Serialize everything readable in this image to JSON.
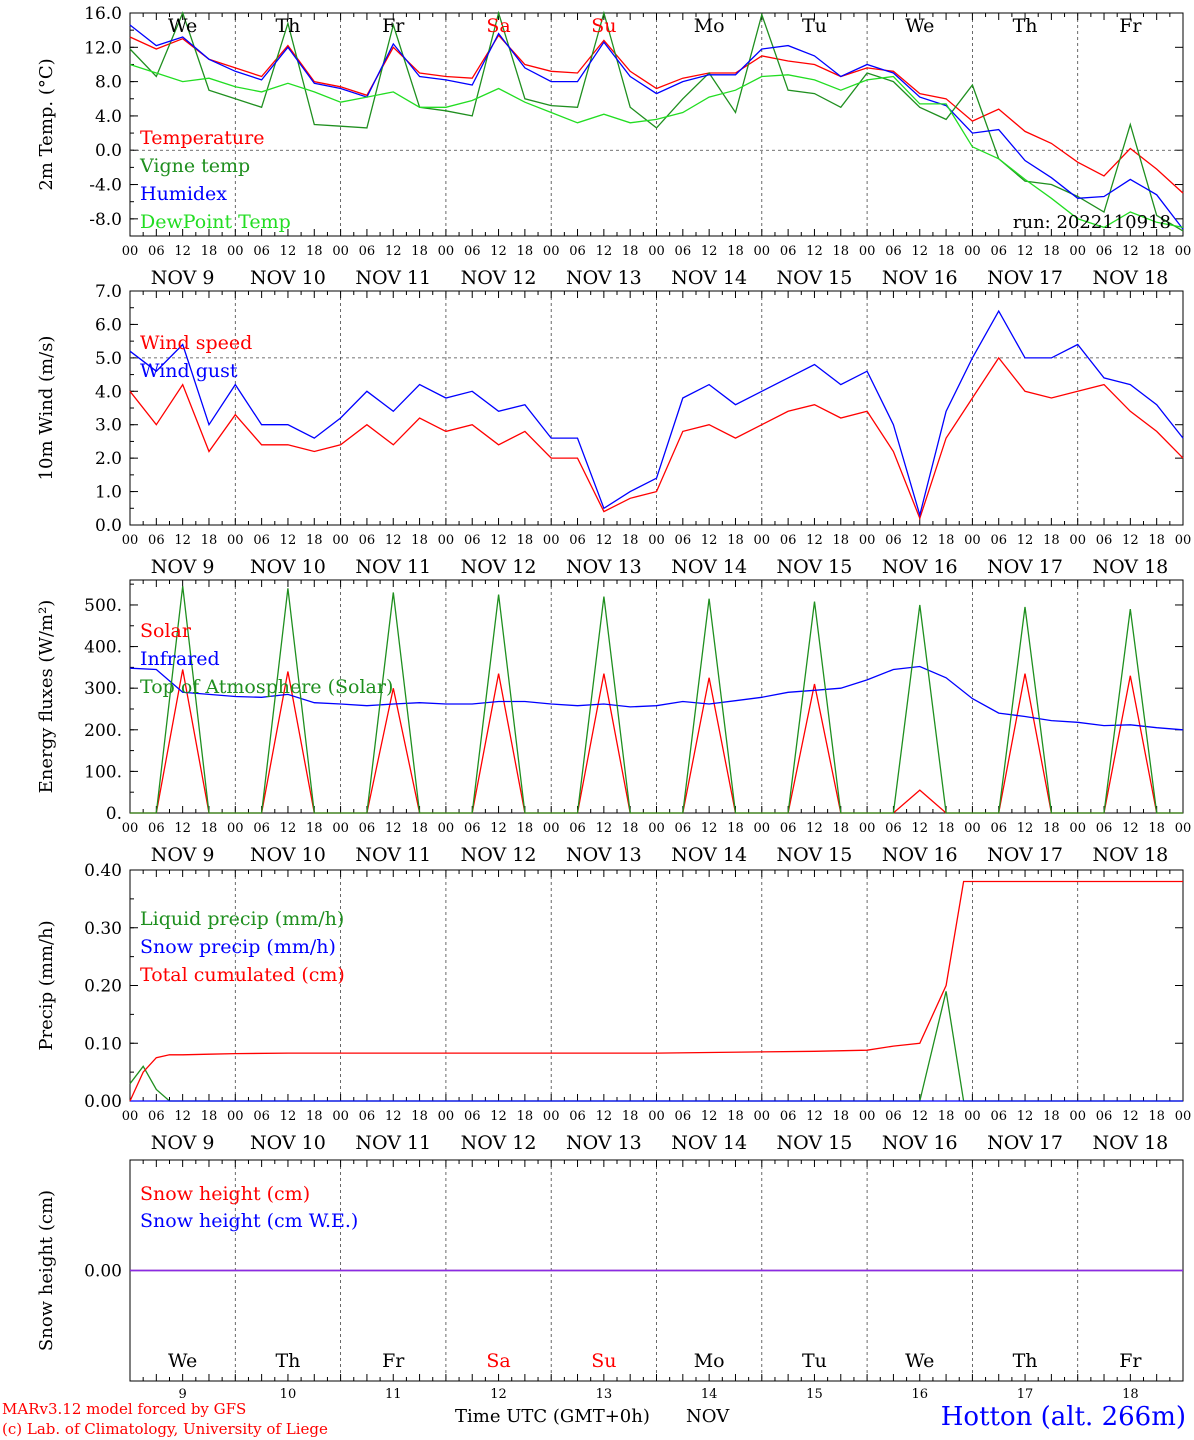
{
  "colors": {
    "red": "#ff0000",
    "green": "#1f8f1f",
    "blue": "#0000ff",
    "lime": "#22dd22",
    "purple": "#8a2be2"
  },
  "x_axis": {
    "hour_labels": [
      "00",
      "06",
      "12",
      "18"
    ],
    "date_labels": [
      "NOV  9",
      "NOV 10",
      "NOV 11",
      "NOV 12",
      "NOV 13",
      "NOV 14",
      "NOV 15",
      "NOV 16",
      "NOV 17",
      "NOV 18"
    ],
    "weekday_labels": [
      "We",
      "Th",
      "Fr",
      "Sa",
      "Su",
      "Mo",
      "Tu",
      "We",
      "Th",
      "Fr"
    ],
    "weekday_red": [
      false,
      false,
      false,
      true,
      true,
      false,
      false,
      false,
      false,
      false
    ],
    "day_numbers": [
      "9",
      "10",
      "11",
      "12",
      "13",
      "14",
      "15",
      "16",
      "17",
      "18"
    ]
  },
  "chart_data": [
    {
      "type": "line",
      "ylabel": "2m Temp. (°C)",
      "ylim": [
        -10,
        16
      ],
      "yticks": [
        "16.0",
        "12.0",
        "8.0",
        "4.0",
        "0.0",
        "-4.0",
        "-8.0"
      ],
      "ytick_values": [
        16,
        12,
        8,
        4,
        0,
        -4,
        -8
      ],
      "annotation": "run: 2022110918",
      "x_hours": [
        0,
        6,
        12,
        18,
        24,
        30,
        36,
        42,
        48,
        54,
        60,
        66,
        72,
        78,
        84,
        90,
        96,
        102,
        108,
        114,
        120,
        126,
        132,
        138,
        144,
        150,
        156,
        162,
        168,
        174,
        180,
        186,
        192,
        198,
        204,
        210,
        216,
        222,
        228,
        234,
        240
      ],
      "series": [
        {
          "name": "Temperature",
          "color": "red",
          "values": [
            13.2,
            11.8,
            13.0,
            10.6,
            9.6,
            8.6,
            12.2,
            8.0,
            7.4,
            6.4,
            12.0,
            9.0,
            8.6,
            8.4,
            13.4,
            10.0,
            9.2,
            9.0,
            12.8,
            9.2,
            7.2,
            8.4,
            9.0,
            9.0,
            11.0,
            10.4,
            10.0,
            8.6,
            9.6,
            9.2,
            6.6,
            6.0,
            3.4,
            4.8,
            2.2,
            0.8,
            -1.4,
            -3.0,
            0.2,
            -2.2,
            -5.0
          ]
        },
        {
          "name": "Vigne temp",
          "color": "green",
          "values": [
            11.8,
            8.6,
            16.0,
            7.0,
            6.0,
            5.0,
            14.8,
            3.0,
            2.8,
            2.6,
            14.6,
            5.0,
            4.6,
            4.0,
            16.0,
            6.0,
            5.2,
            5.0,
            16.0,
            5.0,
            2.6,
            6.0,
            9.0,
            4.4,
            15.8,
            7.0,
            6.6,
            5.0,
            9.0,
            8.0,
            5.0,
            3.6,
            7.6,
            -1.0,
            -3.6,
            -4.0,
            -5.4,
            -7.2,
            3.0,
            -7.6,
            -9.4
          ]
        },
        {
          "name": "Humidex",
          "color": "blue",
          "values": [
            14.6,
            12.2,
            13.2,
            10.6,
            9.2,
            8.2,
            12.0,
            7.8,
            7.2,
            6.2,
            12.4,
            8.6,
            8.2,
            7.6,
            13.6,
            9.6,
            8.0,
            8.0,
            12.6,
            8.6,
            6.6,
            8.0,
            8.8,
            8.8,
            11.8,
            12.2,
            11.0,
            8.6,
            10.0,
            9.0,
            6.2,
            5.2,
            2.0,
            2.4,
            -1.2,
            -3.2,
            -5.6,
            -5.4,
            -3.4,
            -5.2,
            -9.2
          ]
        },
        {
          "name": "DewPoint Temp",
          "color": "lime",
          "values": [
            10.0,
            9.0,
            8.0,
            8.4,
            7.4,
            6.8,
            7.8,
            6.8,
            5.6,
            6.2,
            6.8,
            5.0,
            5.0,
            5.8,
            7.2,
            5.6,
            4.4,
            3.2,
            4.2,
            3.2,
            3.6,
            4.4,
            6.2,
            7.0,
            8.6,
            8.8,
            8.2,
            7.0,
            8.2,
            8.6,
            5.4,
            5.4,
            0.4,
            -1.0,
            -3.4,
            -5.6,
            -8.0,
            -9.0,
            -7.2,
            -8.4,
            -9.0
          ]
        }
      ],
      "legend_position": "top-left",
      "grid": true
    },
    {
      "type": "line",
      "ylabel": "10m Wind (m/s)",
      "ylim": [
        0,
        7
      ],
      "yticks": [
        "7.0",
        "6.0",
        "5.0",
        "4.0",
        "3.0",
        "2.0",
        "1.0",
        "0.0"
      ],
      "ytick_values": [
        7,
        6,
        5,
        4,
        3,
        2,
        1,
        0
      ],
      "reference_line": 5,
      "x_hours": [
        0,
        6,
        12,
        18,
        24,
        30,
        36,
        42,
        48,
        54,
        60,
        66,
        72,
        78,
        84,
        90,
        96,
        102,
        108,
        114,
        120,
        126,
        132,
        138,
        144,
        150,
        156,
        162,
        168,
        174,
        180,
        186,
        192,
        198,
        204,
        210,
        216,
        222,
        228,
        234,
        240
      ],
      "series": [
        {
          "name": "Wind speed",
          "color": "red",
          "values": [
            4.0,
            3.0,
            4.2,
            2.2,
            3.3,
            2.4,
            2.4,
            2.2,
            2.4,
            3.0,
            2.4,
            3.2,
            2.8,
            3.0,
            2.4,
            2.8,
            2.0,
            2.0,
            0.4,
            0.8,
            1.0,
            2.8,
            3.0,
            2.6,
            3.0,
            3.4,
            3.6,
            3.2,
            3.4,
            2.2,
            0.2,
            2.6,
            3.8,
            5.0,
            4.0,
            3.8,
            4.0,
            4.2,
            3.4,
            2.8,
            2.0
          ]
        },
        {
          "name": "Wind gust",
          "color": "blue",
          "values": [
            5.2,
            4.6,
            5.4,
            3.0,
            4.2,
            3.0,
            3.0,
            2.6,
            3.2,
            4.0,
            3.4,
            4.2,
            3.8,
            4.0,
            3.4,
            3.6,
            2.6,
            2.6,
            0.5,
            1.0,
            1.4,
            3.8,
            4.2,
            3.6,
            4.0,
            4.4,
            4.8,
            4.2,
            4.6,
            3.0,
            0.3,
            3.4,
            5.0,
            6.4,
            5.0,
            5.0,
            5.4,
            4.4,
            4.2,
            3.6,
            2.6
          ]
        }
      ],
      "legend_position": "top-left",
      "grid": true
    },
    {
      "type": "line",
      "ylabel": "Energy fluxes (W/m²)",
      "ylim": [
        0,
        560
      ],
      "yticks": [
        "500.",
        "400.",
        "300.",
        "200.",
        "100.",
        "0."
      ],
      "ytick_values": [
        500,
        400,
        300,
        200,
        100,
        0
      ],
      "x_hours": [
        0,
        6,
        12,
        18,
        24,
        30,
        36,
        42,
        48,
        54,
        60,
        66,
        72,
        78,
        84,
        90,
        96,
        102,
        108,
        114,
        120,
        126,
        132,
        138,
        144,
        150,
        156,
        162,
        168,
        174,
        180,
        186,
        192,
        198,
        204,
        210,
        216,
        222,
        228,
        234,
        240
      ],
      "series": [
        {
          "name": "Solar",
          "color": "red",
          "values": [
            0,
            0,
            345,
            0,
            0,
            0,
            340,
            0,
            0,
            0,
            300,
            0,
            0,
            0,
            335,
            0,
            0,
            0,
            335,
            0,
            0,
            0,
            325,
            0,
            0,
            0,
            310,
            0,
            0,
            0,
            55,
            0,
            0,
            0,
            335,
            0,
            0,
            0,
            330,
            0,
            0
          ]
        },
        {
          "name": "Infrared",
          "color": "blue",
          "values": [
            348,
            345,
            290,
            285,
            280,
            278,
            285,
            265,
            262,
            258,
            262,
            265,
            262,
            262,
            268,
            268,
            262,
            258,
            262,
            255,
            258,
            268,
            262,
            270,
            278,
            290,
            295,
            300,
            320,
            345,
            352,
            325,
            275,
            240,
            232,
            222,
            218,
            210,
            212,
            205,
            200
          ]
        },
        {
          "name": "Top of Atmosphere (Solar)",
          "color": "green",
          "values": [
            0,
            0,
            545,
            0,
            0,
            0,
            540,
            0,
            0,
            0,
            530,
            0,
            0,
            0,
            525,
            0,
            0,
            0,
            520,
            0,
            0,
            0,
            515,
            0,
            0,
            0,
            508,
            0,
            0,
            0,
            500,
            0,
            0,
            0,
            495,
            0,
            0,
            0,
            490,
            0,
            0
          ]
        }
      ],
      "legend_position": "top-left",
      "grid": true
    },
    {
      "type": "line",
      "ylabel": "Precip (mm/h)",
      "ylim": [
        0,
        0.4
      ],
      "yticks": [
        "0.40",
        "0.30",
        "0.20",
        "0.10",
        "0.00"
      ],
      "ytick_values": [
        0.4,
        0.3,
        0.2,
        0.1,
        0.0
      ],
      "x_hours": [
        0,
        3,
        6,
        9,
        12,
        18,
        24,
        36,
        48,
        60,
        72,
        84,
        96,
        108,
        120,
        132,
        144,
        156,
        168,
        174,
        180,
        186,
        190,
        192,
        198,
        204,
        216,
        228,
        240
      ],
      "series": [
        {
          "name": "Liquid precip (mm/h)",
          "color": "green",
          "values": [
            0.03,
            0.06,
            0.02,
            0.0,
            0.0,
            0.0,
            0.0,
            0.0,
            0.0,
            0.0,
            0.0,
            0.0,
            0.0,
            0.0,
            0.0,
            0.0,
            0.0,
            0.0,
            0.0,
            0.0,
            0.0,
            0.19,
            0.0,
            0.0,
            0.0,
            0.0,
            0.0,
            0.0,
            0.0
          ]
        },
        {
          "name": "Snow precip (mm/h)",
          "color": "blue",
          "values": [
            0,
            0,
            0,
            0,
            0,
            0,
            0,
            0,
            0,
            0,
            0,
            0,
            0,
            0,
            0,
            0,
            0,
            0,
            0,
            0,
            0,
            0,
            0,
            0,
            0,
            0,
            0,
            0,
            0
          ]
        },
        {
          "name": "Total cumulated (cm)",
          "color": "red",
          "values": [
            0.0,
            0.05,
            0.075,
            0.08,
            0.08,
            0.081,
            0.082,
            0.083,
            0.083,
            0.083,
            0.083,
            0.083,
            0.083,
            0.083,
            0.083,
            0.084,
            0.085,
            0.086,
            0.088,
            0.095,
            0.1,
            0.2,
            0.38,
            0.38,
            0.38,
            0.38,
            0.38,
            0.38,
            0.38
          ]
        }
      ],
      "legend_position": "top-left",
      "grid": true
    },
    {
      "type": "line",
      "ylabel": "Snow height (cm)",
      "ylim": [
        -1,
        1
      ],
      "yticks": [
        "0.00"
      ],
      "ytick_values": [
        0
      ],
      "x_hours": [
        0,
        240
      ],
      "series": [
        {
          "name": "Snow height (cm)",
          "color": "red",
          "values": [
            0,
            0
          ]
        },
        {
          "name": "Snow height (cm W.E.)",
          "color": "blue",
          "values": [
            0,
            0
          ]
        }
      ],
      "legend_position": "top-left",
      "grid": true
    }
  ],
  "footer": {
    "xlabel": "Time UTC (GMT+0h)",
    "month": "NOV",
    "credit_1": "MARv3.12 model forced by GFS",
    "credit_2": "(c) Lab. of Climatology, University of Liege",
    "station": "Hotton (alt. 266m)"
  }
}
